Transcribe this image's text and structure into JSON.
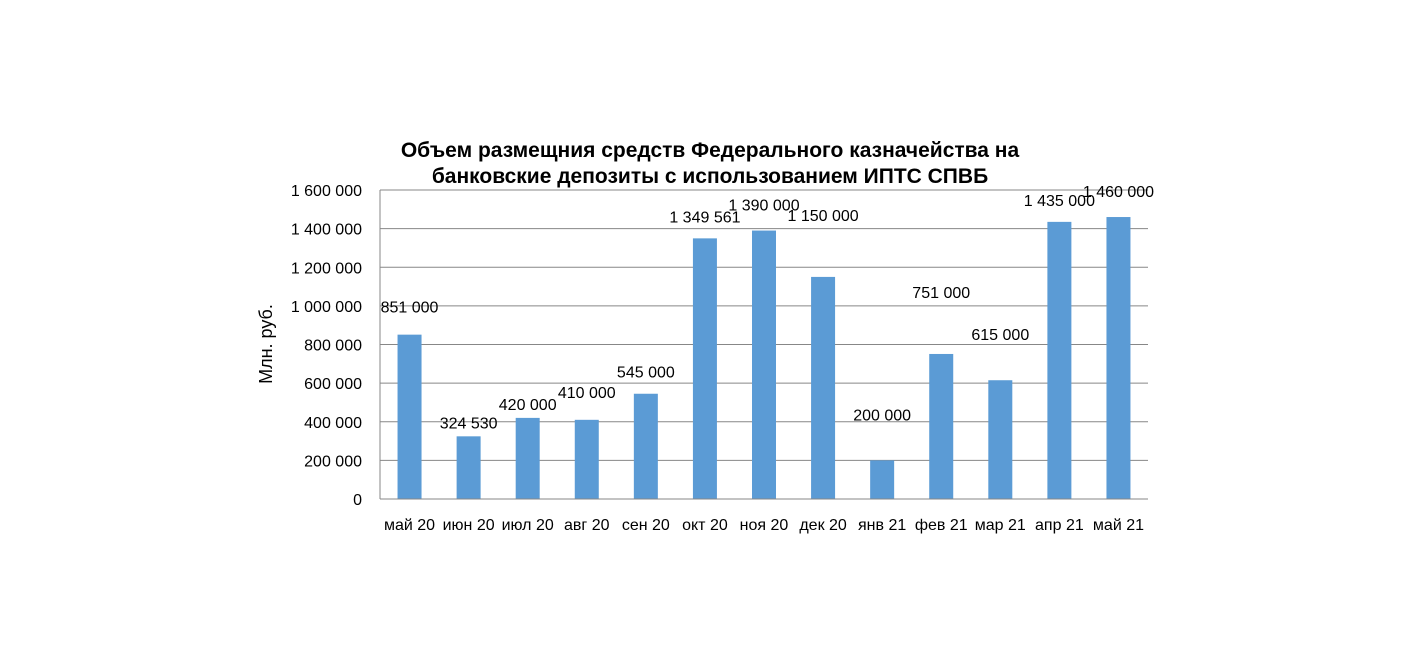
{
  "chart_data": {
    "type": "bar",
    "title_lines": [
      "Объем размещния средств Федерального казначейства на",
      "банковские депозиты с использованием ИПТС СПВБ"
    ],
    "xlabel": "",
    "ylabel": "Млн. руб.",
    "ylim": [
      0,
      1600000
    ],
    "y_ticks": [
      0,
      200000,
      400000,
      600000,
      800000,
      1000000,
      1200000,
      1400000,
      1600000
    ],
    "y_tick_labels": [
      "0",
      "200 000",
      "400 000",
      "600 000",
      "800 000",
      "1 000 000",
      "1 200 000",
      "1 400 000",
      "1 600 000"
    ],
    "grid": true,
    "legend": "none",
    "categories": [
      "май 20",
      "июн 20",
      "июл 20",
      "авг 20",
      "сен 20",
      "окт 20",
      "ноя 20",
      "дек 20",
      "янв 21",
      "фев 21",
      "мар 21",
      "апр 21",
      "май 21"
    ],
    "values": [
      851000,
      324530,
      420000,
      410000,
      545000,
      1349561,
      1390000,
      1150000,
      200000,
      751000,
      615000,
      1435000,
      1460000
    ],
    "data_labels": [
      "851 000",
      "324 530",
      "420 000",
      "410 000",
      "545 000",
      "1 349 561",
      "1 390 000",
      "1 150 000",
      "200 000",
      "751 000",
      "615 000",
      "1 435 000",
      "1 460 000"
    ],
    "bar_color": "#5B9BD5",
    "gridline_color": "#878787"
  }
}
